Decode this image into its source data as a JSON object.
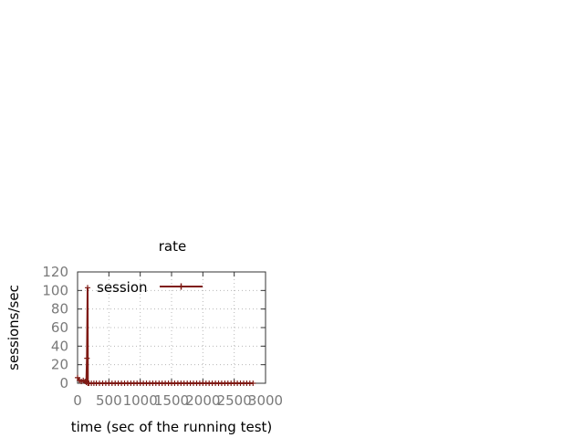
{
  "chart_data": {
    "type": "line",
    "title": "rate",
    "xlabel": "time (sec of the running test)",
    "ylabel": "sessions/sec",
    "xlim": [
      0,
      3000
    ],
    "ylim": [
      0,
      120
    ],
    "xticks": [
      0,
      500,
      1000,
      1500,
      2000,
      2500,
      3000
    ],
    "yticks": [
      0,
      20,
      40,
      60,
      80,
      100,
      120
    ],
    "grid": true,
    "legend_position": "top-left",
    "series_color": "#7f1a14",
    "series": [
      {
        "name": "session",
        "points": [
          [
            0,
            6
          ],
          [
            30,
            3
          ],
          [
            60,
            2
          ],
          [
            90,
            3
          ],
          [
            120,
            2
          ],
          [
            140,
            1
          ],
          [
            150,
            27
          ],
          [
            160,
            103
          ],
          [
            165,
            0
          ],
          [
            180,
            0
          ],
          [
            300,
            0
          ],
          [
            450,
            0
          ],
          [
            600,
            0
          ],
          [
            750,
            0
          ],
          [
            900,
            0
          ],
          [
            1050,
            0
          ],
          [
            1200,
            0
          ],
          [
            1350,
            0
          ],
          [
            1500,
            0
          ],
          [
            1650,
            0
          ],
          [
            1800,
            0
          ],
          [
            1950,
            0
          ],
          [
            2100,
            0
          ],
          [
            2250,
            0
          ],
          [
            2400,
            0
          ],
          [
            2550,
            0
          ],
          [
            2700,
            0
          ],
          [
            2800,
            0
          ]
        ]
      }
    ]
  }
}
